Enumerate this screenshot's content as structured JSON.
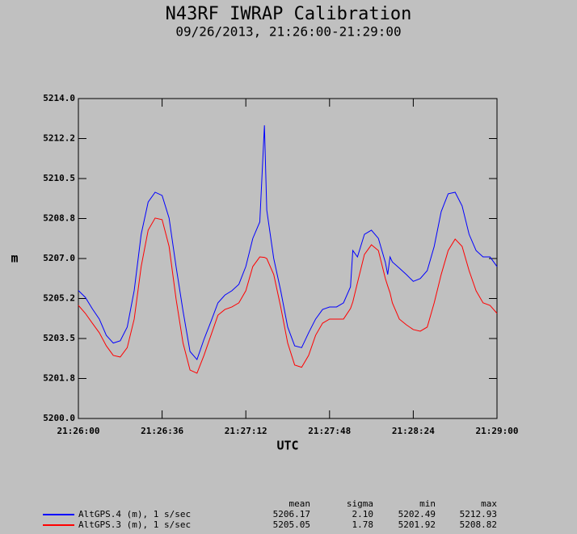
{
  "chart_data": {
    "type": "line",
    "title": "N43RF IWRAP Calibration",
    "subtitle": "09/26/2013, 21:26:00-21:29:00",
    "x_label": "UTC",
    "y_label": "m",
    "x": [
      "21:26:00",
      "21:26:03",
      "21:26:06",
      "21:26:09",
      "21:26:12",
      "21:26:15",
      "21:26:18",
      "21:26:21",
      "21:26:24",
      "21:26:27",
      "21:26:30",
      "21:26:33",
      "21:26:36",
      "21:26:39",
      "21:26:42",
      "21:26:45",
      "21:26:48",
      "21:26:51",
      "21:26:54",
      "21:26:57",
      "21:27:00",
      "21:27:03",
      "21:27:06",
      "21:27:09",
      "21:27:12",
      "21:27:15",
      "21:27:18",
      "21:27:20",
      "21:27:21",
      "21:27:24",
      "21:27:27",
      "21:27:30",
      "21:27:33",
      "21:27:36",
      "21:27:39",
      "21:27:42",
      "21:27:45",
      "21:27:48",
      "21:27:51",
      "21:27:54",
      "21:27:57",
      "21:27:58",
      "21:28:00",
      "21:28:03",
      "21:28:06",
      "21:28:09",
      "21:28:12",
      "21:28:13",
      "21:28:14",
      "21:28:15",
      "21:28:18",
      "21:28:21",
      "21:28:24",
      "21:28:27",
      "21:28:30",
      "21:28:33",
      "21:28:36",
      "21:28:39",
      "21:28:42",
      "21:28:45",
      "21:28:48",
      "21:28:51",
      "21:28:54",
      "21:28:57",
      "21:29:00"
    ],
    "series": [
      {
        "name": "AltGPS.4 (m), 1 s/sec",
        "color": "#0000ff",
        "values": [
          5205.6,
          5205.3,
          5204.8,
          5204.35,
          5203.64,
          5203.3,
          5203.4,
          5204.0,
          5205.6,
          5208.06,
          5209.47,
          5209.9,
          5209.76,
          5208.77,
          5206.65,
          5204.7,
          5202.93,
          5202.58,
          5203.46,
          5204.24,
          5205.06,
          5205.4,
          5205.59,
          5205.87,
          5206.65,
          5207.88,
          5208.6,
          5212.83,
          5209.12,
          5207.0,
          5205.59,
          5204.0,
          5203.18,
          5203.1,
          5203.75,
          5204.35,
          5204.77,
          5204.88,
          5204.88,
          5205.06,
          5205.76,
          5207.35,
          5207.07,
          5208.06,
          5208.24,
          5207.88,
          5206.83,
          5206.3,
          5207.07,
          5206.85,
          5206.58,
          5206.3,
          5206.0,
          5206.12,
          5206.47,
          5207.53,
          5209.05,
          5209.83,
          5209.9,
          5209.3,
          5208.06,
          5207.35,
          5207.07,
          5207.07,
          5206.65
        ]
      },
      {
        "name": "AltGPS.3 (m), 1 s/sec",
        "color": "#ff0000",
        "values": [
          5204.95,
          5204.6,
          5204.17,
          5203.75,
          5203.18,
          5202.76,
          5202.69,
          5203.1,
          5204.35,
          5206.65,
          5208.24,
          5208.77,
          5208.7,
          5207.53,
          5205.23,
          5203.3,
          5202.12,
          5201.98,
          5202.76,
          5203.64,
          5204.52,
          5204.77,
          5204.88,
          5205.06,
          5205.59,
          5206.65,
          5207.07,
          5207.05,
          5207.0,
          5206.3,
          5204.88,
          5203.3,
          5202.34,
          5202.24,
          5202.76,
          5203.64,
          5204.17,
          5204.35,
          5204.35,
          5204.35,
          5204.81,
          5205.1,
          5205.94,
          5207.18,
          5207.6,
          5207.35,
          5206.12,
          5205.8,
          5205.5,
          5205.06,
          5204.35,
          5204.1,
          5203.89,
          5203.82,
          5204.0,
          5205.06,
          5206.3,
          5207.35,
          5207.85,
          5207.53,
          5206.47,
          5205.59,
          5205.06,
          5204.95,
          5204.6
        ]
      }
    ],
    "xlim": [
      "21:26:00",
      "21:29:00"
    ],
    "xticks": [
      "21:26:00",
      "21:26:36",
      "21:27:12",
      "21:27:48",
      "21:28:24",
      "21:29:00"
    ],
    "ylim": [
      5200,
      5214
    ],
    "yticks": [
      {
        "value": 5200,
        "label": "5200.0"
      },
      {
        "value": 5201.75,
        "label": "5201.8"
      },
      5203.5,
      {
        "value": 5205.25,
        "label": "5205.2"
      },
      {
        "value": 5207,
        "label": "5207.0"
      },
      {
        "value": 5208.75,
        "label": "5208.8"
      },
      5210.5,
      {
        "value": 5212.25,
        "label": "5212.2"
      },
      {
        "value": 5214,
        "label": "5214.0"
      }
    ],
    "stats": {
      "columns": [
        "mean",
        "sigma",
        "min",
        "max"
      ],
      "rows": [
        [
          "5206.17",
          "2.10",
          "5202.49",
          "5212.93"
        ],
        [
          "5205.05",
          "1.78",
          "5201.92",
          "5208.82"
        ]
      ]
    }
  }
}
